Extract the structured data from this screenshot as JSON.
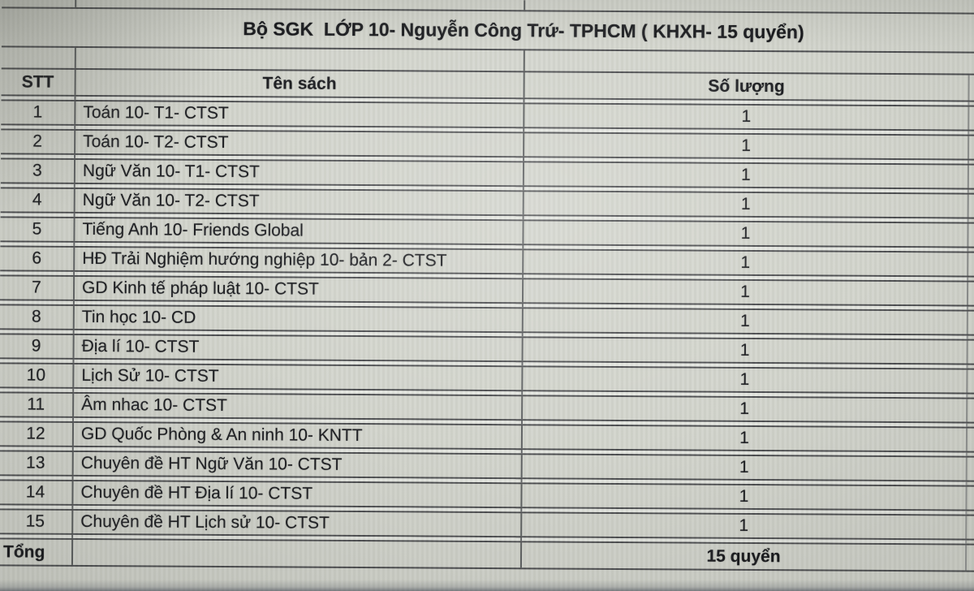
{
  "title": "Bộ SGK  LỚP 10- Nguyễn Công Trứ- TPHCM ( KHXH- 15 quyển)",
  "table": {
    "columns": [
      "STT",
      "Tên sách",
      "Số lượng"
    ],
    "rows": [
      {
        "stt": "1",
        "name": "Toán 10- T1- CTST",
        "qty": "1"
      },
      {
        "stt": "2",
        "name": "Toán 10- T2- CTST",
        "qty": "1"
      },
      {
        "stt": "3",
        "name": "Ngữ Văn 10- T1- CTST",
        "qty": "1"
      },
      {
        "stt": "4",
        "name": "Ngữ Văn 10- T2- CTST",
        "qty": "1"
      },
      {
        "stt": "5",
        "name": "Tiếng Anh 10- Friends Global",
        "qty": "1"
      },
      {
        "stt": "6",
        "name": "HĐ Trải Nghiệm hướng nghiệp 10- bản 2- CTST",
        "qty": "1"
      },
      {
        "stt": "7",
        "name": "GD Kinh tế pháp luật 10- CTST",
        "qty": "1"
      },
      {
        "stt": "8",
        "name": "Tin học 10- CD",
        "qty": "1"
      },
      {
        "stt": "9",
        "name": "Địa lí 10- CTST",
        "qty": "1"
      },
      {
        "stt": "10",
        "name": "Lịch Sử 10- CTST",
        "qty": "1"
      },
      {
        "stt": "11",
        "name": "Âm nhac 10- CTST",
        "qty": "1"
      },
      {
        "stt": "12",
        "name": "GD Quốc Phòng & An ninh 10- KNTT",
        "qty": "1"
      },
      {
        "stt": "13",
        "name": "Chuyên đề HT Ngữ Văn 10- CTST",
        "qty": "1"
      },
      {
        "stt": "14",
        "name": "Chuyên đề HT Địa lí 10- CTST",
        "qty": "1"
      },
      {
        "stt": "15",
        "name": "Chuyên đề HT Lịch sử 10- CTST",
        "qty": "1"
      }
    ],
    "total": {
      "label": "Tổng",
      "qty": "15 quyển"
    }
  },
  "colors": {
    "sheet_bg": "#d2d4cc",
    "gap_strip": "#e3e5df",
    "grid_line": "#36383c",
    "text": "#17181c"
  }
}
